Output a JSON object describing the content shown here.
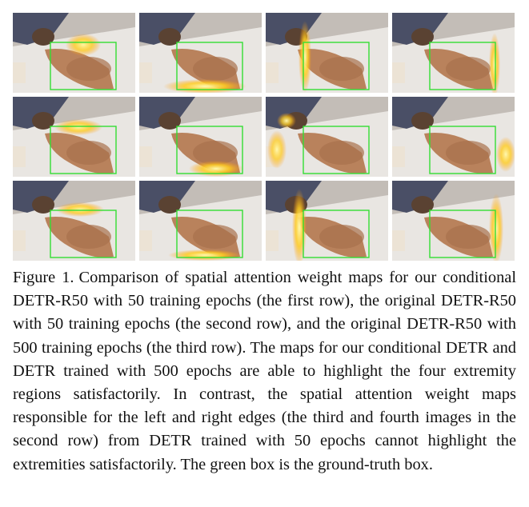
{
  "figure": {
    "label": "Figure 1.",
    "caption": "Comparison of spatial attention weight maps for our conditional DETR-R50 with 50 training epochs (the first row), the original DETR-R50 with 50 training epochs (the second row), and the original DETR-R50 with 500 training epochs (the third row). The maps for our conditional DETR and DETR trained with 500 epochs are able to highlight the four extremity regions satisfactorily. In contrast, the spatial attention weight maps responsible for the left and right edges (the third and fourth images in the second row) from DETR trained with 50 epochs cannot highlight the extremities satisfactorily. The green box is the ground-truth box."
  },
  "colors": {
    "ground_truth_box": "#33dd33",
    "attention_highlight": "#ffd21f",
    "sheet": "#e9e6e2",
    "dog": "#b9825c"
  },
  "grid": {
    "rows": [
      {
        "description": "conditional DETR-R50, 50 epochs",
        "panels": [
          {
            "highlight": "top edge"
          },
          {
            "highlight": "bottom edge"
          },
          {
            "highlight": "left edge"
          },
          {
            "highlight": "right edge"
          }
        ]
      },
      {
        "description": "DETR-R50, 50 epochs",
        "panels": [
          {
            "highlight": "top edge"
          },
          {
            "highlight": "bottom edge"
          },
          {
            "highlight": "left edge (diffuse)"
          },
          {
            "highlight": "right edge (diffuse)"
          }
        ]
      },
      {
        "description": "DETR-R50, 500 epochs",
        "panels": [
          {
            "highlight": "top edge"
          },
          {
            "highlight": "bottom edge"
          },
          {
            "highlight": "left edge"
          },
          {
            "highlight": "right edge"
          }
        ]
      }
    ]
  }
}
